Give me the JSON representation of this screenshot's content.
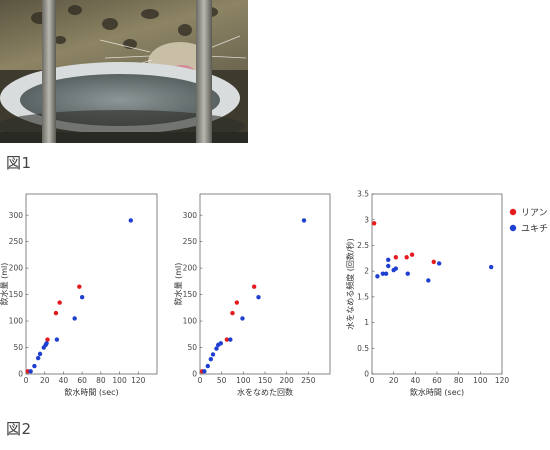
{
  "figure1": {
    "label": "図1",
    "photo": {
      "icon": "leopard-drinking-from-bowl-photo",
      "colors": {
        "fur": "#8a8060",
        "bowl": "#d8dcdc",
        "water": "#6c7676",
        "bars": "#9a9a94",
        "tongue": "#d48a96"
      }
    }
  },
  "figure2": {
    "label": "図2"
  },
  "colors": {
    "リアン": "#e41a1c",
    "ユキチ": "#1f3fd1"
  },
  "chart_data": [
    {
      "type": "scatter",
      "title": "",
      "xlabel": "飲水時間 (sec)",
      "ylabel": "飲水量 (ml)",
      "xlim": [
        0,
        140
      ],
      "ylim": [
        0,
        340
      ],
      "xticks": [
        "0",
        "20",
        "40",
        "60",
        "80",
        "100",
        "120"
      ],
      "yticks": [
        "0",
        "50",
        "100",
        "150",
        "200",
        "250",
        "300"
      ],
      "grid": false,
      "series": [
        {
          "name": "リアン",
          "points": [
            [
              2,
              5
            ],
            [
              23,
              65
            ],
            [
              32,
              115
            ],
            [
              36,
              135
            ],
            [
              57,
              165
            ]
          ]
        },
        {
          "name": "ユキチ",
          "points": [
            [
              5,
              5
            ],
            [
              9,
              15
            ],
            [
              13,
              30
            ],
            [
              15,
              38
            ],
            [
              19,
              50
            ],
            [
              21,
              55
            ],
            [
              22,
              58
            ],
            [
              33,
              65
            ],
            [
              52,
              105
            ],
            [
              60,
              145
            ],
            [
              112,
              290
            ]
          ]
        }
      ]
    },
    {
      "type": "scatter",
      "title": "",
      "xlabel": "水をなめた回数",
      "ylabel": "飲水量 (ml)",
      "xlim": [
        0,
        300
      ],
      "ylim": [
        0,
        340
      ],
      "xticks": [
        "0",
        "50",
        "100",
        "150",
        "200",
        "250"
      ],
      "yticks": [
        "0",
        "50",
        "100",
        "150",
        "200",
        "250",
        "300"
      ],
      "grid": false,
      "series": [
        {
          "name": "リアン",
          "points": [
            [
              5,
              5
            ],
            [
              62,
              65
            ],
            [
              75,
              115
            ],
            [
              85,
              135
            ],
            [
              125,
              165
            ]
          ]
        },
        {
          "name": "ユキチ",
          "points": [
            [
              10,
              5
            ],
            [
              18,
              15
            ],
            [
              25,
              28
            ],
            [
              30,
              37
            ],
            [
              38,
              48
            ],
            [
              42,
              55
            ],
            [
              48,
              58
            ],
            [
              70,
              65
            ],
            [
              98,
              105
            ],
            [
              135,
              145
            ],
            [
              240,
              290
            ]
          ]
        }
      ]
    },
    {
      "type": "scatter",
      "title": "",
      "xlabel": "飲水時間 (sec)",
      "ylabel": "水をなめる頻度 (回数/秒)",
      "xlim": [
        0,
        120
      ],
      "ylim": [
        0,
        3.5
      ],
      "xticks": [
        "0",
        "20",
        "40",
        "60",
        "80",
        "100",
        "120"
      ],
      "yticks": [
        "0",
        "0.5",
        "1",
        "1.5",
        "2",
        "2.5",
        "3",
        "3.5"
      ],
      "grid": false,
      "legend": "outside-right",
      "series": [
        {
          "name": "リアン",
          "points": [
            [
              2,
              2.93
            ],
            [
              22,
              2.27
            ],
            [
              32,
              2.27
            ],
            [
              37,
              2.32
            ],
            [
              57,
              2.18
            ]
          ]
        },
        {
          "name": "ユキチ",
          "points": [
            [
              5,
              1.9
            ],
            [
              10,
              1.95
            ],
            [
              13,
              1.95
            ],
            [
              15,
              2.1
            ],
            [
              15,
              2.22
            ],
            [
              20,
              2.02
            ],
            [
              22,
              2.05
            ],
            [
              33,
              1.95
            ],
            [
              52,
              1.82
            ],
            [
              62,
              2.15
            ],
            [
              110,
              2.08
            ]
          ]
        }
      ]
    }
  ]
}
